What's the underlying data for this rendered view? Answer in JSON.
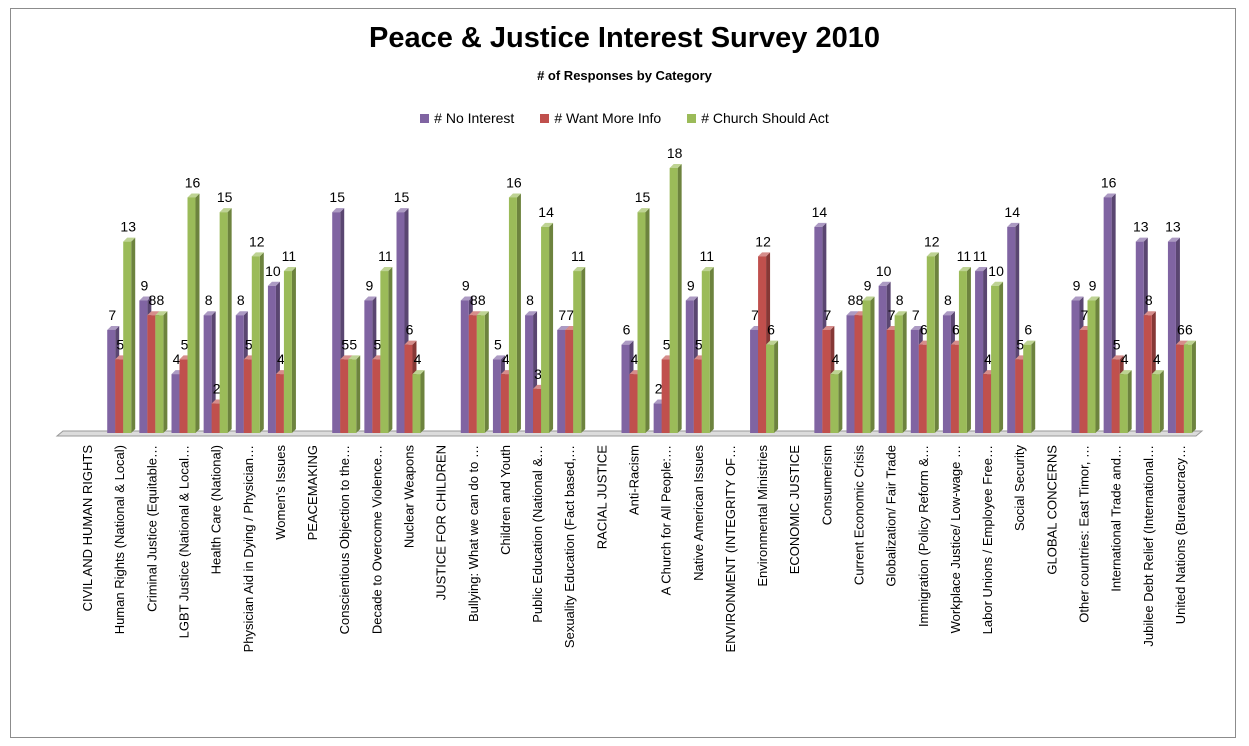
{
  "chart_data": {
    "type": "bar",
    "title": "Peace & Justice Interest Survey 2010",
    "subtitle": "# of Responses by Category",
    "legend_position": "top",
    "ylim": [
      0,
      18
    ],
    "grid": false,
    "categories": [
      "CIVIL AND HUMAN RIGHTS",
      "Human Rights  (National & Local)",
      "Criminal Justice (Equitable…",
      "LGBT Justice (National  & Local…",
      "Health Care (National)",
      "Physician Aid in Dying / Physician…",
      "Women's Issues",
      "PEACEMAKING",
      "Conscientious Objection to the…",
      "Decade to Overcome Violence…",
      "Nuclear Weapons",
      "JUSTICE FOR CHILDREN",
      "Bullying:  What we can do to …",
      "Children and Youth",
      "Public Education  (National  &…",
      "Sexuality Education (Fact based,…",
      "RACIAL JUSTICE",
      "Anti-Racism",
      "A Church for All People:…",
      "Native American Issues",
      "ENVIRONMENT  (INTEGRITY  OF…",
      "Environmental Ministries",
      "ECONOMIC JUSTICE",
      "Consumerism",
      "Current Economic Crisis",
      "Globalization/ Fair Trade",
      "Immigration  (Policy Reform &…",
      "Workplace Justice/ Low-wage …",
      "Labor Unions / Employee Free…",
      "Social Security",
      "GLOBAL CONCERNS",
      "Other countries:  East Timor, …",
      "International Trade and…",
      "Jubilee Debt Relief (International…",
      "United Nations  (Bureaucracy…"
    ],
    "series": [
      {
        "name": "# No Interest",
        "color": "#8064a2",
        "values": [
          null,
          7,
          9,
          4,
          8,
          8,
          10,
          null,
          15,
          9,
          15,
          null,
          9,
          5,
          8,
          7,
          null,
          6,
          2,
          9,
          null,
          7,
          null,
          14,
          8,
          10,
          7,
          8,
          11,
          14,
          null,
          9,
          16,
          13,
          13
        ]
      },
      {
        "name": "# Want More Info",
        "color": "#c0504d",
        "values": [
          null,
          5,
          8,
          5,
          2,
          5,
          4,
          null,
          5,
          5,
          6,
          null,
          8,
          4,
          3,
          7,
          null,
          4,
          5,
          5,
          null,
          12,
          null,
          7,
          8,
          7,
          6,
          6,
          4,
          5,
          null,
          7,
          5,
          8,
          6
        ]
      },
      {
        "name": "# Church Should Act",
        "color": "#9bbb59",
        "values": [
          null,
          13,
          8,
          16,
          15,
          12,
          11,
          null,
          5,
          11,
          4,
          null,
          8,
          16,
          14,
          11,
          null,
          15,
          18,
          11,
          null,
          6,
          null,
          4,
          9,
          8,
          12,
          11,
          10,
          6,
          null,
          9,
          4,
          4,
          6
        ]
      }
    ]
  }
}
